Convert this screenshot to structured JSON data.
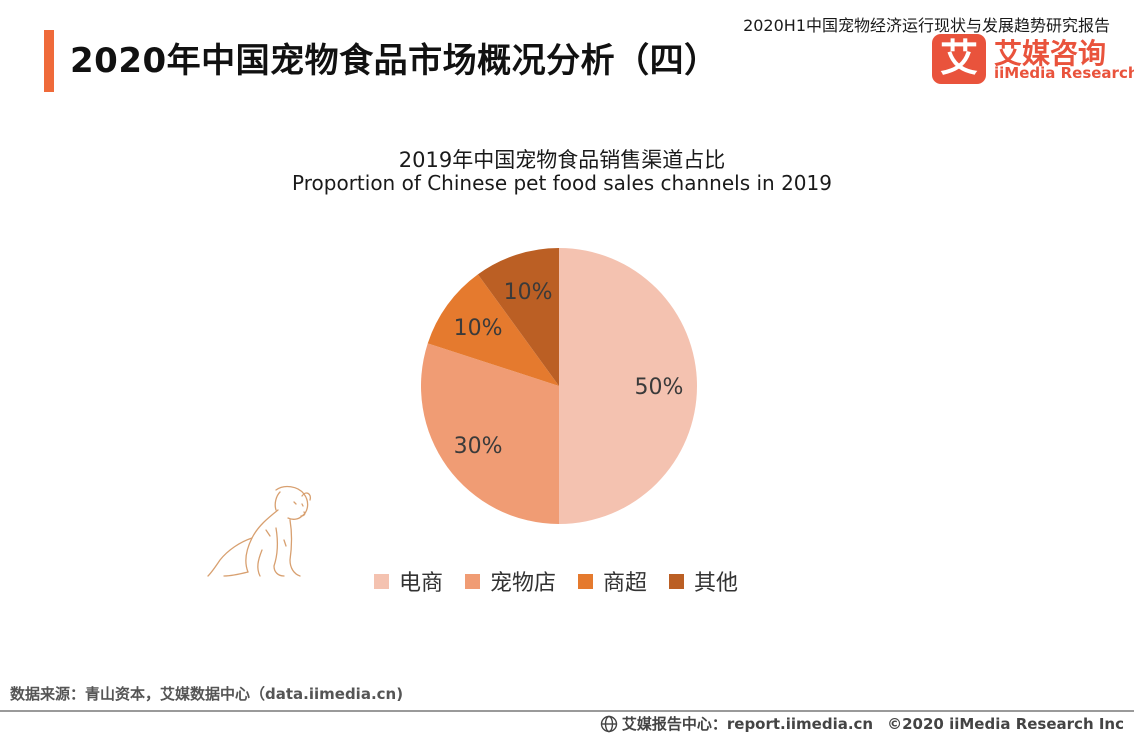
{
  "header": {
    "report_title": "2020H1中国宠物经济运行现状与发展趋势研究报告",
    "page_title": "2020年中国宠物食品市场概况分析（四）",
    "logo": {
      "mark": "艾",
      "name_cn": "艾媒咨询",
      "name_en": "iiMedia Research",
      "color": "#e9533c"
    },
    "accent_color": "#ef6a3a"
  },
  "chart_data": {
    "type": "pie",
    "title": "2019年中国宠物食品销售渠道占比",
    "subtitle": "Proportion of Chinese pet food sales channels in 2019",
    "categories": [
      "电商",
      "宠物店",
      "商超",
      "其他"
    ],
    "values": [
      50,
      30,
      10,
      10
    ],
    "labels": [
      "50%",
      "30%",
      "10%",
      "10%"
    ],
    "colors": [
      "#f4c2b0",
      "#f09c74",
      "#e57a2e",
      "#bb5f24"
    ],
    "start": "12 o'clock",
    "direction": "clockwise",
    "legend_position": "bottom"
  },
  "footer": {
    "source": "数据来源：青山资本，艾媒数据中心（data.iimedia.cn)",
    "report_center": "艾媒报告中心：report.iimedia.cn",
    "copyright": "©2020  iiMedia Research  Inc",
    "globe_icon": "globe-icon"
  },
  "decoration": {
    "illustration": "dog-sketch-icon"
  }
}
